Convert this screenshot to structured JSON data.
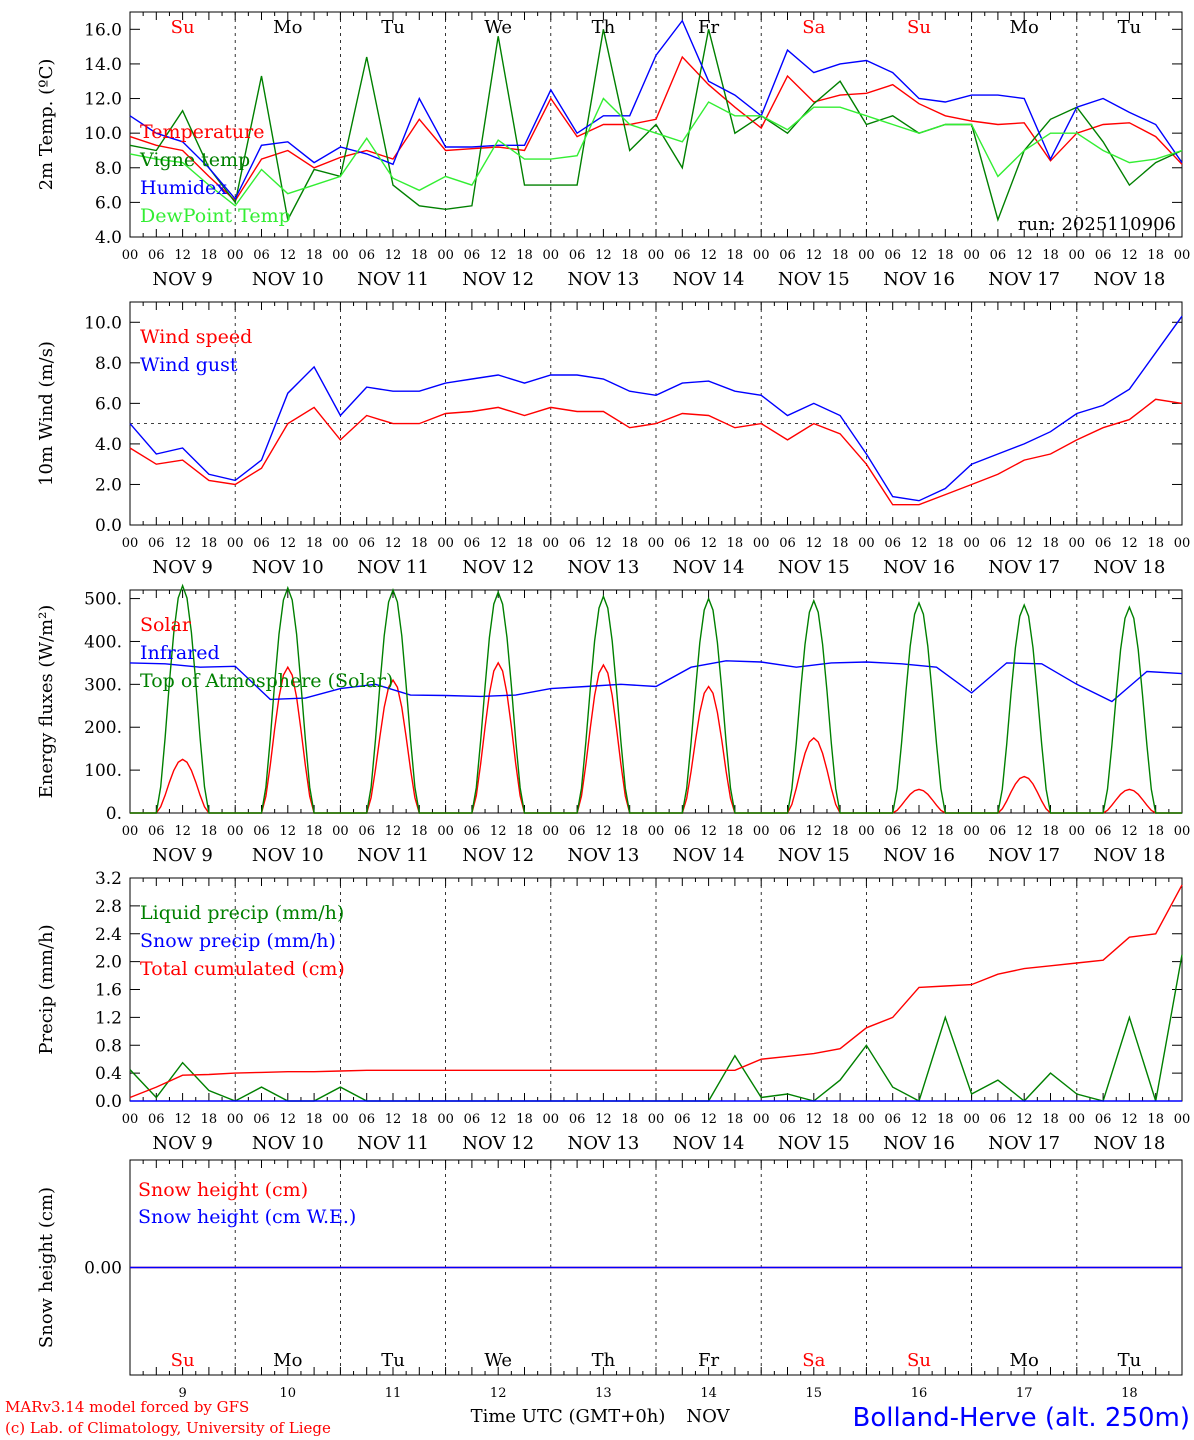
{
  "colors": {
    "red": "#ff0000",
    "green": "#008000",
    "blue": "#0000ff",
    "lightgreen": "#33ee33",
    "black": "#000000"
  },
  "days": {
    "dow": [
      "Su",
      "Mo",
      "Tu",
      "We",
      "Th",
      "Fr",
      "Sa",
      "Su",
      "Mo",
      "Tu"
    ],
    "dow_colors": [
      "#ff0000",
      "#000000",
      "#000000",
      "#000000",
      "#000000",
      "#000000",
      "#ff0000",
      "#ff0000",
      "#000000",
      "#000000"
    ],
    "dates": [
      "NOV  9",
      "NOV 10",
      "NOV 11",
      "NOV 12",
      "NOV 13",
      "NOV 14",
      "NOV 15",
      "NOV 16",
      "NOV 17",
      "NOV 18"
    ],
    "day_numbers": [
      "9",
      "10",
      "11",
      "12",
      "13",
      "14",
      "15",
      "16",
      "17",
      "18"
    ],
    "hour_labels": [
      "00",
      "06",
      "12",
      "18"
    ],
    "final_hour_label": "00"
  },
  "footer": {
    "model": "MARv3.14 model forced by GFS",
    "credit": "(c) Lab. of Climatology, University of Liege",
    "xaxis_title": "Time UTC (GMT+0h)",
    "month": "NOV",
    "station": "Bolland-Herve (alt. 250m)"
  },
  "chart_data": [
    {
      "type": "line",
      "title": "Temperature",
      "ylabel": "2m Temp. (ºC)",
      "ylim": [
        4,
        17
      ],
      "yticks": [
        4,
        6,
        8,
        10,
        12,
        14,
        16
      ],
      "ytick_labels": [
        "4.0",
        "6.0",
        "8.0",
        "10.0",
        "12.0",
        "14.0",
        "16.0"
      ],
      "annotation": "run: 2025110906",
      "x_hours": "0 to 240, 6-hour steps",
      "series": [
        {
          "name": "Temperature",
          "color": "#ff0000",
          "values": [
            9.8,
            9.3,
            9.0,
            7.5,
            6.1,
            8.5,
            9.0,
            8.0,
            8.6,
            9.0,
            8.5,
            10.8,
            9.0,
            9.1,
            9.2,
            9.0,
            12.0,
            9.8,
            10.5,
            10.5,
            10.8,
            14.4,
            12.8,
            11.5,
            10.3,
            13.3,
            11.8,
            12.2,
            12.3,
            12.8,
            11.7,
            11.0,
            10.7,
            10.5,
            10.6,
            8.4,
            10.0,
            10.5,
            10.6,
            9.8,
            8.2
          ]
        },
        {
          "name": "Vigne temp",
          "color": "#008000",
          "values": [
            9.3,
            9.0,
            11.3,
            8.0,
            6.0,
            13.3,
            5.0,
            7.9,
            7.5,
            14.4,
            7.0,
            5.8,
            5.6,
            5.8,
            15.6,
            7.0,
            7.0,
            7.0,
            16.0,
            9.0,
            10.5,
            8.0,
            16.0,
            10.0,
            11.0,
            10.0,
            11.7,
            13.0,
            10.5,
            11.0,
            10.0,
            10.5,
            10.5,
            5.0,
            9.0,
            10.8,
            11.5,
            9.5,
            7.0,
            8.3,
            9.0
          ]
        },
        {
          "name": "Humidex",
          "color": "#0000ff",
          "values": [
            11.0,
            10.0,
            9.5,
            8.0,
            6.2,
            9.3,
            9.5,
            8.3,
            9.2,
            8.8,
            8.2,
            12.0,
            9.2,
            9.2,
            9.3,
            9.3,
            12.5,
            10.0,
            11.0,
            11.0,
            14.5,
            16.5,
            13.0,
            12.2,
            11.0,
            14.8,
            13.5,
            14.0,
            14.2,
            13.5,
            12.0,
            11.8,
            12.2,
            12.2,
            12.0,
            8.5,
            11.5,
            12.0,
            11.2,
            10.5,
            8.3
          ]
        },
        {
          "name": "DewPoint Temp",
          "color": "#33ee33",
          "values": [
            8.8,
            8.5,
            8.3,
            7.0,
            5.8,
            7.9,
            6.5,
            7.0,
            7.5,
            9.7,
            7.4,
            6.7,
            7.5,
            7.0,
            9.6,
            8.5,
            8.5,
            8.7,
            12.0,
            10.5,
            10.0,
            9.5,
            11.8,
            11.0,
            11.0,
            10.2,
            11.5,
            11.5,
            11.0,
            10.5,
            10.0,
            10.5,
            10.5,
            7.5,
            9.0,
            10.0,
            10.0,
            9.0,
            8.3,
            8.5,
            9.0
          ]
        }
      ]
    },
    {
      "type": "line",
      "title": "Wind",
      "ylabel": "10m Wind (m/s)",
      "ylim": [
        0,
        11
      ],
      "yticks": [
        0,
        2,
        4,
        6,
        8,
        10
      ],
      "ytick_labels": [
        "0.0",
        "2.0",
        "4.0",
        "6.0",
        "8.0",
        "10.0"
      ],
      "reference_line": 5,
      "series": [
        {
          "name": "Wind speed",
          "color": "#ff0000",
          "values": [
            3.8,
            3.0,
            3.2,
            2.2,
            2.0,
            2.8,
            5.0,
            5.8,
            4.2,
            5.4,
            5.0,
            5.0,
            5.5,
            5.6,
            5.8,
            5.4,
            5.8,
            5.6,
            5.6,
            4.8,
            5.0,
            5.5,
            5.4,
            4.8,
            5.0,
            4.2,
            5.0,
            4.5,
            3.0,
            1.0,
            1.0,
            1.5,
            2.0,
            2.5,
            3.2,
            3.5,
            4.2,
            4.8,
            5.2,
            6.2,
            6.0
          ]
        },
        {
          "name": "Wind gust",
          "color": "#0000ff",
          "values": [
            5.0,
            3.5,
            3.8,
            2.5,
            2.2,
            3.2,
            6.5,
            7.8,
            5.4,
            6.8,
            6.6,
            6.6,
            7.0,
            7.2,
            7.4,
            7.0,
            7.4,
            7.4,
            7.2,
            6.6,
            6.4,
            7.0,
            7.1,
            6.6,
            6.4,
            5.4,
            6.0,
            5.4,
            3.5,
            1.4,
            1.2,
            1.8,
            3.0,
            3.5,
            4.0,
            4.6,
            5.5,
            5.9,
            6.7,
            8.5,
            10.3
          ]
        }
      ]
    },
    {
      "type": "line",
      "title": "Energy fluxes",
      "ylabel": "Energy fluxes (W/m²)",
      "ylim": [
        0,
        520
      ],
      "yticks": [
        0,
        100,
        200,
        300,
        400,
        500
      ],
      "ytick_labels": [
        "0.",
        "100.",
        "200.",
        "300.",
        "400.",
        "500."
      ],
      "series": [
        {
          "name": "Solar",
          "color": "#ff0000",
          "peaks": [
            125,
            340,
            310,
            350,
            345,
            295,
            175,
            55,
            85,
            55
          ]
        },
        {
          "name": "Infrared",
          "color": "#0000ff",
          "values": [
            350,
            348,
            340,
            342,
            265,
            268,
            290,
            300,
            275,
            274,
            272,
            275,
            290,
            295,
            300,
            295,
            340,
            355,
            352,
            340,
            350,
            352,
            348,
            340,
            280,
            350,
            348,
            300,
            260,
            330,
            325
          ]
        },
        {
          "name": "Top of Atmosphere (Solar)",
          "color": "#008000",
          "peaks": [
            530,
            525,
            520,
            515,
            505,
            500,
            495,
            490,
            485,
            480
          ]
        }
      ]
    },
    {
      "type": "line",
      "title": "Precipitation",
      "ylabel": "Precip (mm/h)",
      "ylim": [
        0,
        3.2
      ],
      "yticks": [
        0,
        0.4,
        0.8,
        1.2,
        1.6,
        2.0,
        2.4,
        2.8,
        3.2
      ],
      "ytick_labels": [
        "0.0",
        "0.4",
        "0.8",
        "1.2",
        "1.6",
        "2.0",
        "2.4",
        "2.8",
        "3.2"
      ],
      "series": [
        {
          "name": "Liquid precip (mm/h)",
          "color": "#008000",
          "values": [
            0.45,
            0.05,
            0.55,
            0.15,
            0.0,
            0.2,
            0.0,
            0.0,
            0.2,
            0.0,
            0.0,
            0.0,
            0.0,
            0.0,
            0.0,
            0.0,
            0.0,
            0.0,
            0.0,
            0.0,
            0.0,
            0.0,
            0.0,
            0.65,
            0.05,
            0.1,
            0.0,
            0.3,
            0.8,
            0.2,
            0.0,
            1.2,
            0.1,
            0.3,
            0.0,
            0.4,
            0.1,
            0.0,
            1.2,
            0.0,
            2.1
          ]
        },
        {
          "name": "Snow precip (mm/h)",
          "color": "#0000ff",
          "values": [
            0,
            0,
            0,
            0,
            0,
            0,
            0,
            0,
            0,
            0,
            0,
            0,
            0,
            0,
            0,
            0,
            0,
            0,
            0,
            0,
            0,
            0,
            0,
            0,
            0,
            0,
            0,
            0,
            0,
            0,
            0,
            0,
            0,
            0,
            0,
            0,
            0,
            0,
            0,
            0,
            0
          ]
        },
        {
          "name": "Total cumulated (cm)",
          "color": "#ff0000",
          "values": [
            0.05,
            0.2,
            0.37,
            0.38,
            0.4,
            0.41,
            0.42,
            0.42,
            0.43,
            0.44,
            0.44,
            0.44,
            0.44,
            0.44,
            0.44,
            0.44,
            0.44,
            0.44,
            0.44,
            0.44,
            0.44,
            0.44,
            0.44,
            0.44,
            0.6,
            0.64,
            0.68,
            0.75,
            1.05,
            1.2,
            1.63,
            1.65,
            1.67,
            1.82,
            1.9,
            1.94,
            1.98,
            2.02,
            2.35,
            2.4,
            3.1
          ]
        }
      ]
    },
    {
      "type": "line",
      "title": "Snow height",
      "ylabel": "Snow height (cm)",
      "ylim": [
        -1,
        1
      ],
      "yticks": [
        0
      ],
      "ytick_labels": [
        "0.00"
      ],
      "series": [
        {
          "name": "Snow height (cm)",
          "color": "#ff0000",
          "values": [
            0,
            0
          ]
        },
        {
          "name": "Snow height (cm W.E.)",
          "color": "#0000ff",
          "values": [
            0,
            0
          ]
        }
      ]
    }
  ]
}
